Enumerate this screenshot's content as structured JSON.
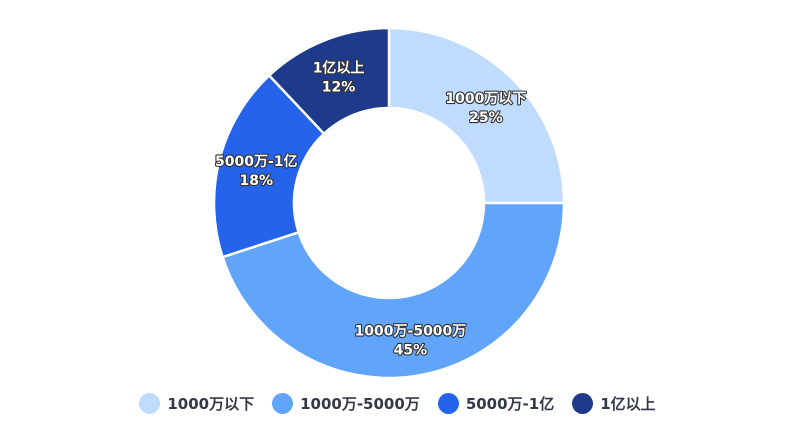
{
  "chart_data": {
    "type": "pie",
    "variant": "donut",
    "title": "",
    "legend_position": "bottom",
    "slices": [
      {
        "label": "1000万以下",
        "value": 25,
        "percent_label": "25%",
        "color": "#bfdbfe"
      },
      {
        "label": "1000万-5000万",
        "value": 45,
        "percent_label": "45%",
        "color": "#60a5fa"
      },
      {
        "label": "5000万-1亿",
        "value": 18,
        "percent_label": "18%",
        "color": "#2563eb"
      },
      {
        "label": "1亿以上",
        "value": 12,
        "percent_label": "12%",
        "color": "#1e3a8a"
      }
    ]
  }
}
